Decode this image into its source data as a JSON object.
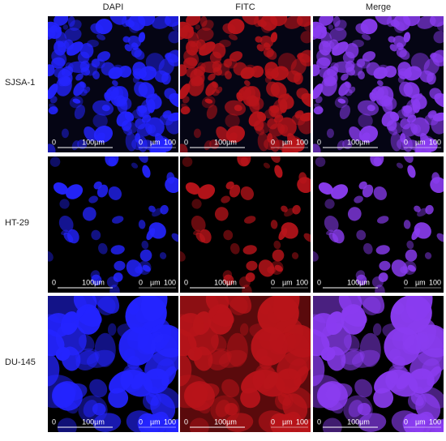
{
  "columns": [
    "DAPI",
    "FITC",
    "Merge"
  ],
  "rows": [
    "SJSA-1",
    "HT-29",
    "DU-145"
  ],
  "scale": {
    "start": "0",
    "bar_label": "100µm",
    "ruler_start": "0",
    "ruler_unit": "µm",
    "ruler_end": "100"
  }
}
